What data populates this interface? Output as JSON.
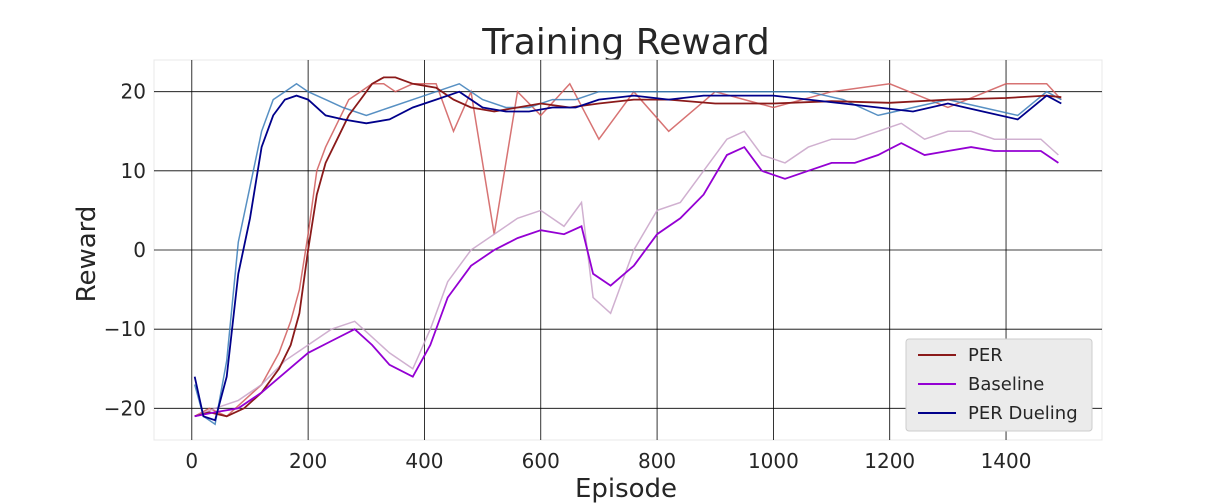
{
  "chart_data": {
    "type": "line",
    "title": "Training Reward",
    "xlabel": "Episode",
    "ylabel": "Reward",
    "xlim": [
      -65,
      1565
    ],
    "ylim": [
      -24,
      24
    ],
    "xticks": [
      0,
      200,
      400,
      600,
      800,
      1000,
      1200,
      1400
    ],
    "yticks": [
      -20,
      -10,
      0,
      10,
      20
    ],
    "grid": true,
    "legend_position": "lower-right",
    "series": [
      {
        "name": "PER",
        "color": "#8b1a1a",
        "raw_color": "#d05a5a",
        "x": [
          5,
          30,
          60,
          90,
          120,
          150,
          170,
          185,
          200,
          215,
          230,
          250,
          270,
          290,
          310,
          330,
          350,
          380,
          420,
          450,
          480,
          520,
          560,
          600,
          650,
          700,
          760,
          820,
          900,
          1000,
          1100,
          1200,
          1300,
          1400,
          1470,
          1495
        ],
        "y": [
          -21,
          -20.5,
          -21,
          -20,
          -18,
          -15,
          -12,
          -8,
          0,
          7,
          11,
          14,
          17,
          19,
          21,
          21.8,
          21.8,
          21,
          20.5,
          19,
          18,
          17.5,
          18,
          18.5,
          18,
          18.5,
          19,
          19,
          18.5,
          18.5,
          18.8,
          18.6,
          19,
          19.2,
          19.5,
          19.3
        ],
        "raw_y": [
          -21,
          -20,
          -21,
          -19,
          -17,
          -13,
          -9,
          -5,
          2,
          10,
          13,
          16,
          19,
          20,
          21,
          21,
          20,
          21,
          21,
          15,
          20,
          2,
          20,
          17,
          21,
          14,
          20,
          15,
          20,
          18,
          20,
          21,
          18,
          21,
          21,
          19
        ]
      },
      {
        "name": "Baseline",
        "color": "#9400d3",
        "raw_color": "#c8a2c8",
        "x": [
          5,
          40,
          80,
          120,
          160,
          200,
          240,
          280,
          310,
          340,
          380,
          410,
          440,
          480,
          520,
          560,
          600,
          640,
          670,
          690,
          720,
          760,
          800,
          840,
          880,
          920,
          950,
          980,
          1020,
          1060,
          1100,
          1140,
          1180,
          1220,
          1260,
          1300,
          1340,
          1380,
          1420,
          1460,
          1490
        ],
        "y": [
          -21,
          -20.5,
          -20,
          -18,
          -15.5,
          -13,
          -11.5,
          -10,
          -12,
          -14.5,
          -16,
          -12,
          -6,
          -2,
          0,
          1.5,
          2.5,
          2,
          3,
          -3,
          -4.5,
          -2,
          2,
          4,
          7,
          12,
          13,
          10,
          9,
          10,
          11,
          11,
          12,
          13.5,
          12,
          12.5,
          13,
          12.5,
          12.5,
          12.5,
          11
        ],
        "raw_y": [
          -21,
          -20,
          -19,
          -17,
          -14,
          -12,
          -10,
          -9,
          -11,
          -13,
          -15,
          -10,
          -4,
          0,
          2,
          4,
          5,
          3,
          6,
          -6,
          -8,
          0,
          5,
          6,
          10,
          14,
          15,
          12,
          11,
          13,
          14,
          14,
          15,
          16,
          14,
          15,
          15,
          14,
          14,
          14,
          12
        ]
      },
      {
        "name": "PER Dueling",
        "color": "#00008b",
        "raw_color": "#3a7cb8",
        "x": [
          5,
          20,
          40,
          60,
          80,
          100,
          120,
          140,
          160,
          180,
          200,
          230,
          260,
          300,
          340,
          380,
          420,
          460,
          500,
          540,
          580,
          620,
          660,
          700,
          760,
          820,
          880,
          940,
          1000,
          1060,
          1120,
          1180,
          1240,
          1300,
          1360,
          1420,
          1470,
          1495
        ],
        "y": [
          -16,
          -21,
          -21.5,
          -16,
          -3,
          4,
          13,
          17,
          19,
          19.5,
          19,
          17,
          16.5,
          16,
          16.5,
          18,
          19,
          20,
          18,
          17.5,
          17.5,
          18,
          18,
          19,
          19.5,
          19,
          19.5,
          19.5,
          19.5,
          19,
          18.5,
          18,
          17.5,
          18.5,
          17.5,
          16.5,
          19.5,
          18.5
        ],
        "raw_y": [
          -17,
          -21,
          -22,
          -14,
          1,
          8,
          15,
          19,
          20,
          21,
          20,
          19,
          18,
          17,
          18,
          19,
          20,
          21,
          19,
          18,
          18,
          19,
          19,
          20,
          20,
          20,
          20,
          20,
          20,
          20,
          19,
          17,
          18,
          19,
          18,
          17,
          20,
          19
        ]
      }
    ]
  }
}
